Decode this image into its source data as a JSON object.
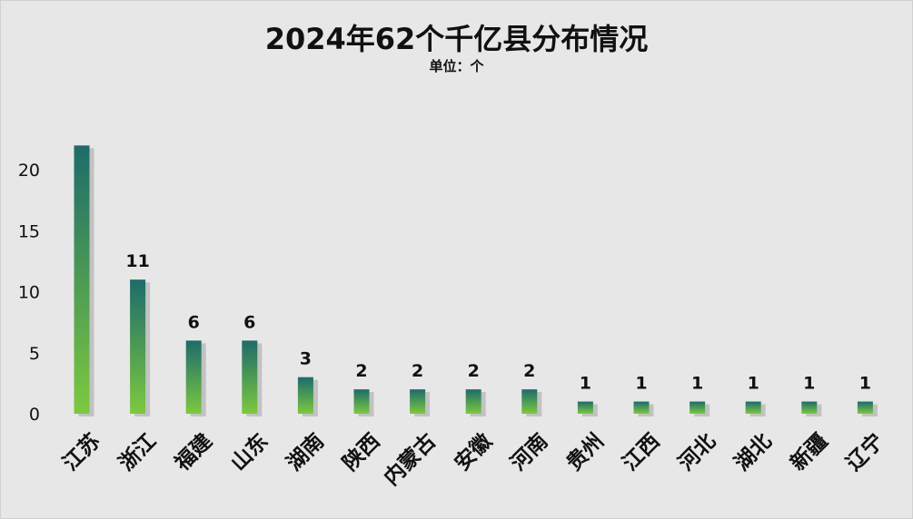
{
  "chart_data": {
    "type": "bar",
    "title": "2024年62个千亿县分布情况",
    "subtitle": "单位：个",
    "categories": [
      "江苏",
      "浙江",
      "福建",
      "山东",
      "湖南",
      "陕西",
      "内蒙古",
      "安徽",
      "河南",
      "贵州",
      "江西",
      "河北",
      "湖北",
      "新疆",
      "辽宁"
    ],
    "values": [
      22,
      11,
      6,
      6,
      3,
      2,
      2,
      2,
      2,
      1,
      1,
      1,
      1,
      1,
      1
    ],
    "data_labels": [
      "",
      "11",
      "6",
      "6",
      "3",
      "2",
      "2",
      "2",
      "2",
      "1",
      "1",
      "1",
      "1",
      "1",
      "1"
    ],
    "yticks": [
      0,
      5,
      10,
      15,
      20
    ],
    "ylim": [
      0,
      25
    ],
    "grid": false,
    "legend": "none",
    "colors": {
      "bar_top": "#1d6b6a",
      "bar_bottom": "#7cc940",
      "background": "#e7e7e7"
    }
  }
}
